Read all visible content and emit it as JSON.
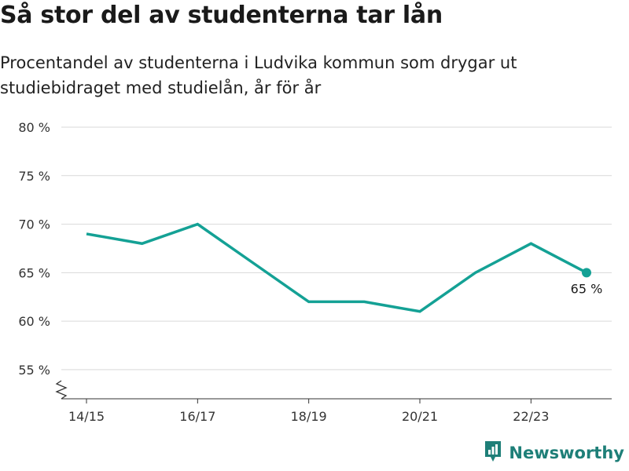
{
  "title": "Så stor del av studenterna tar lån",
  "subtitle": "Procentandel av studenterna i Ludvika kommun som drygar ut studiebidraget med studielån, år för år",
  "brand": {
    "name": "Newsworthy",
    "icon": "newsworthy-logo-icon",
    "color": "#1e7f78"
  },
  "chart_data": {
    "type": "line",
    "x": [
      "14/15",
      "15/16",
      "16/17",
      "17/18",
      "18/19",
      "19/20",
      "20/21",
      "21/22",
      "22/23",
      "23/24"
    ],
    "values": [
      69,
      68,
      70,
      66,
      62,
      62,
      61,
      65,
      68,
      65
    ],
    "x_tick_labels": [
      "14/15",
      "16/17",
      "18/19",
      "20/21",
      "22/23"
    ],
    "y_ticks": [
      55,
      60,
      65,
      70,
      75,
      80
    ],
    "y_tick_labels": [
      "55 %",
      "60 %",
      "65 %",
      "70 %",
      "75 %",
      "80 %"
    ],
    "ylim": [
      52,
      80
    ],
    "axis_break": true,
    "grid": true,
    "line_color": "#14a195",
    "last_point_label": "65 %"
  }
}
